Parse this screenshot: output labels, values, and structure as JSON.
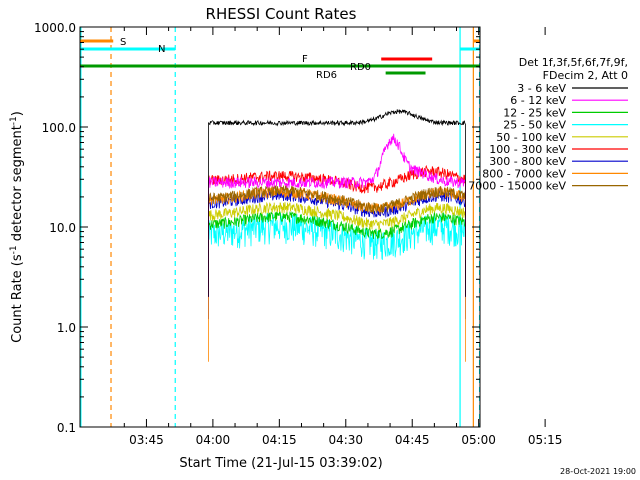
{
  "chart_data": {
    "type": "line",
    "title": "RHESSI Count Rates",
    "xlabel": "Start Time (21-Jul-15 03:39:02)",
    "ylabel_main": "Count Rate (s",
    "ylabel_sup": "-1",
    "ylabel_tail": " detector segment",
    "ylabel_sup2": "-1",
    "ylabel_close": ")",
    "yscale": "log",
    "ylim": [
      0.1,
      1000
    ],
    "y_ticks": [
      "0.1",
      "1.0",
      "10.0",
      "100.0",
      "1000.0"
    ],
    "x_range_minutes": [
      -9.0,
      81.3
    ],
    "x_ticks": [
      {
        "label": "03:45",
        "min": 6.0
      },
      {
        "label": "04:00",
        "min": 21.0
      },
      {
        "label": "04:15",
        "min": 36.0
      },
      {
        "label": "04:30",
        "min": 51.0
      },
      {
        "label": "04:45",
        "min": 66.0
      },
      {
        "label": "05:00",
        "min": 81.0
      },
      {
        "label": "05:15",
        "min": 96.0
      }
    ],
    "legend_header": [
      "Det 1f,3f,5f,6f,7f,9f,",
      "FDecim 2, Att 0"
    ],
    "series": [
      {
        "name": "3 - 6 keV",
        "color": "#000000",
        "base": 110
      },
      {
        "name": "6 - 12 keV",
        "color": "#ff00ff",
        "base": 28
      },
      {
        "name": "12 - 25 keV",
        "color": "#00cc00",
        "base": 10.5
      },
      {
        "name": "25 - 50 keV",
        "color": "#00ffff",
        "base": 8.5
      },
      {
        "name": "50 - 100 keV",
        "color": "#cccc00",
        "base": 13
      },
      {
        "name": "100 - 300 keV",
        "color": "#ff0000",
        "base": 29
      },
      {
        "name": "300 - 800 keV",
        "color": "#0000cc",
        "base": 17
      },
      {
        "name": "800 - 7000 keV",
        "color": "#ff8800",
        "base": 18.5
      },
      {
        "name": "7000 - 15000 keV",
        "color": "#996600",
        "base": 19
      }
    ],
    "annotations": {
      "S": {
        "label": "S",
        "color": "#ff8800"
      },
      "N": {
        "label": "N",
        "color": "#00ffff"
      },
      "F": {
        "label": "F",
        "color": "#ff0000"
      },
      "RD0": {
        "label": "RD0",
        "color": "#009900"
      },
      "RD6": {
        "label": "RD6",
        "color": "#009900"
      }
    },
    "footer_date": "28-Oct-2021 19:00"
  }
}
